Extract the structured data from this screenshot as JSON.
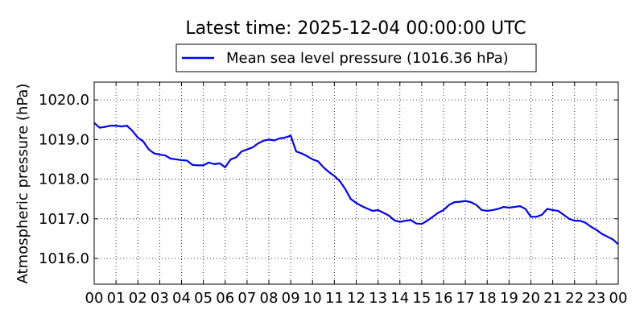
{
  "chart_data": {
    "type": "line",
    "title": "Latest time: 2025-12-04 00:00:00 UTC",
    "xlabel": "",
    "ylabel": "Atmospheric pressure (hPa)",
    "xlim": [
      0,
      24
    ],
    "ylim": [
      1015.35,
      1020.45
    ],
    "grid": true,
    "legend_position": "top-center",
    "x_tick_labels": [
      "00",
      "01",
      "02",
      "03",
      "04",
      "05",
      "06",
      "07",
      "08",
      "09",
      "10",
      "11",
      "12",
      "13",
      "14",
      "15",
      "16",
      "17",
      "18",
      "19",
      "20",
      "21",
      "22",
      "23",
      "00"
    ],
    "y_ticks": [
      1016.0,
      1017.0,
      1018.0,
      1019.0,
      1020.0
    ],
    "y_tick_labels": [
      "1016.0",
      "1017.0",
      "1018.0",
      "1019.0",
      "1020.0"
    ],
    "series": [
      {
        "name": "Mean sea level pressure (1016.36 hPa)",
        "color": "#0000ff",
        "x": [
          0,
          0.25,
          0.5,
          0.75,
          1.0,
          1.25,
          1.5,
          1.75,
          2.0,
          2.25,
          2.5,
          2.75,
          3.0,
          3.25,
          3.5,
          3.75,
          4.0,
          4.25,
          4.5,
          4.75,
          5.0,
          5.25,
          5.5,
          5.75,
          6.0,
          6.25,
          6.5,
          6.75,
          7.0,
          7.25,
          7.5,
          7.75,
          8.0,
          8.25,
          8.5,
          8.75,
          9.0,
          9.25,
          9.5,
          9.75,
          10.0,
          10.25,
          10.5,
          10.75,
          11.0,
          11.25,
          11.5,
          11.75,
          12.0,
          12.25,
          12.5,
          12.75,
          13.0,
          13.25,
          13.5,
          13.75,
          14.0,
          14.25,
          14.5,
          14.75,
          15.0,
          15.25,
          15.5,
          15.75,
          16.0,
          16.25,
          16.5,
          16.75,
          17.0,
          17.25,
          17.5,
          17.75,
          18.0,
          18.25,
          18.5,
          18.75,
          19.0,
          19.25,
          19.5,
          19.75,
          20.0,
          20.25,
          20.5,
          20.75,
          21.0,
          21.25,
          21.5,
          21.75,
          22.0,
          22.25,
          22.5,
          22.75,
          23.0,
          23.25,
          23.5,
          23.75,
          24.0
        ],
        "y": [
          1019.42,
          1019.3,
          1019.32,
          1019.35,
          1019.35,
          1019.33,
          1019.35,
          1019.22,
          1019.05,
          1018.95,
          1018.75,
          1018.65,
          1018.62,
          1018.6,
          1018.52,
          1018.5,
          1018.48,
          1018.47,
          1018.36,
          1018.35,
          1018.35,
          1018.42,
          1018.38,
          1018.4,
          1018.3,
          1018.5,
          1018.55,
          1018.7,
          1018.75,
          1018.8,
          1018.9,
          1018.97,
          1019.0,
          1018.98,
          1019.03,
          1019.05,
          1019.1,
          1018.7,
          1018.65,
          1018.58,
          1018.5,
          1018.45,
          1018.3,
          1018.18,
          1018.08,
          1017.95,
          1017.75,
          1017.5,
          1017.4,
          1017.32,
          1017.26,
          1017.2,
          1017.22,
          1017.15,
          1017.08,
          1016.96,
          1016.92,
          1016.95,
          1016.97,
          1016.88,
          1016.87,
          1016.95,
          1017.05,
          1017.15,
          1017.22,
          1017.35,
          1017.42,
          1017.43,
          1017.45,
          1017.42,
          1017.35,
          1017.22,
          1017.2,
          1017.22,
          1017.25,
          1017.3,
          1017.28,
          1017.3,
          1017.32,
          1017.25,
          1017.05,
          1017.05,
          1017.1,
          1017.25,
          1017.22,
          1017.2,
          1017.1,
          1017.0,
          1016.95,
          1016.95,
          1016.9,
          1016.8,
          1016.72,
          1016.62,
          1016.55,
          1016.48,
          1016.36
        ]
      }
    ]
  }
}
